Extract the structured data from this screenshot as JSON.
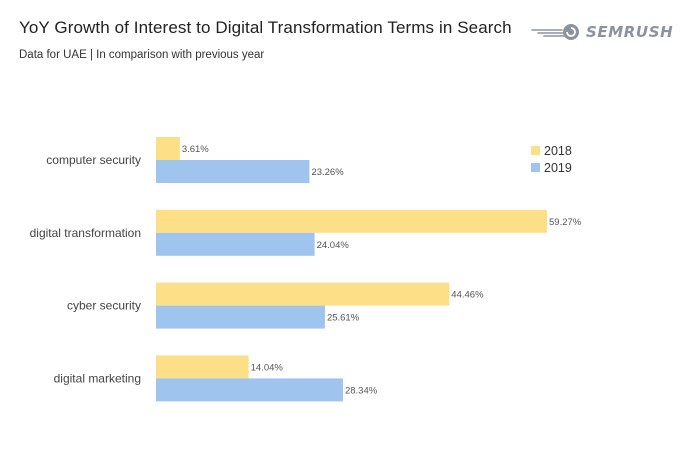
{
  "header": {
    "title": "YoY Growth of Interest to Digital Transformation Terms in Search",
    "subtitle": "Data for UAE | In comparison with previous year",
    "brand": "SEMRUSH",
    "brand_icon": "semrush-fireball-icon"
  },
  "colors": {
    "series_2018": "#fddf88",
    "series_2019": "#9fc5ee",
    "brand": "#8d939e"
  },
  "chart_data": {
    "type": "bar",
    "orientation": "horizontal",
    "title": "YoY Growth of Interest to Digital Transformation Terms in Search",
    "subtitle": "Data for UAE | In comparison with previous year",
    "categories": [
      "computer security",
      "digital transformation",
      "cyber security",
      "digital marketing"
    ],
    "series": [
      {
        "name": "2018",
        "values": [
          3.61,
          59.27,
          44.46,
          14.04
        ],
        "labels": [
          "3.61%",
          "59.27%",
          "44.46%",
          "14.04%"
        ]
      },
      {
        "name": "2019",
        "values": [
          23.26,
          24.04,
          25.61,
          28.34
        ],
        "labels": [
          "23.26%",
          "24.04%",
          "25.61%",
          "28.34%"
        ]
      }
    ],
    "value_unit": "%",
    "xlim": [
      0,
      60
    ],
    "grid": false,
    "legend_position": "top-right"
  }
}
